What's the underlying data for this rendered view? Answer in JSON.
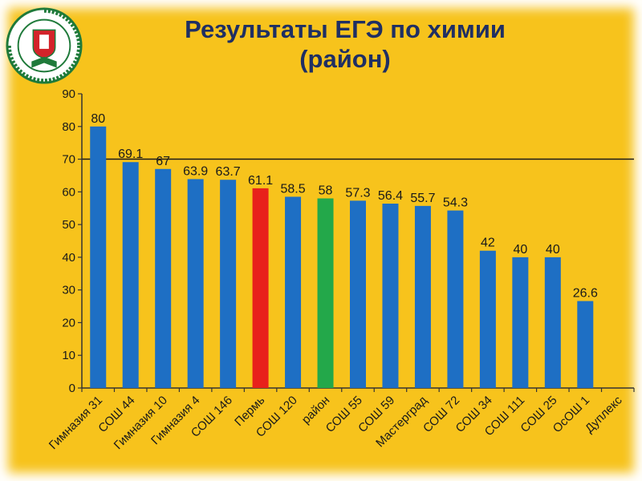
{
  "slide": {
    "title_line1": "Результаты ЕГЭ по химии",
    "title_line2": "(район)",
    "emblem_text": "Администрация города Перми — департамент образования"
  },
  "colors": {
    "background": "#f7c31c",
    "title": "#1f2f63",
    "bar_default": "#1e6fc4",
    "bar_highlight_red": "#e8211b",
    "bar_highlight_green": "#23a84a"
  },
  "chart_data": {
    "type": "bar",
    "title": "Результаты ЕГЭ по химии (район)",
    "xlabel": "",
    "ylabel": "",
    "ylim": [
      0,
      90
    ],
    "yticks": [
      0,
      10,
      20,
      30,
      40,
      50,
      60,
      70,
      80,
      90
    ],
    "grid": "horizontal gridline at 70",
    "legend": "none",
    "categories": [
      "Гимназия 31",
      "СОШ 44",
      "Гимназия 10",
      "Гимназия 4",
      "СОШ 146",
      "Пермь",
      "СОШ 120",
      "район",
      "СОШ 55",
      "СОШ 59",
      "Мастерград",
      "СОШ 72",
      "СОШ 34",
      "СОШ 111",
      "СОШ 25",
      "ОсОШ 1",
      "Дуплекс"
    ],
    "values": [
      80,
      69.1,
      67,
      63.9,
      63.7,
      61.1,
      58.5,
      58,
      57.3,
      56.4,
      55.7,
      54.3,
      42,
      40,
      40,
      26.6,
      null
    ],
    "labels": [
      "80",
      "69.1",
      "67",
      "63.9",
      "63.7",
      "61.1",
      "58.5",
      "58",
      "57.3",
      "56.4",
      "55.7",
      "54.3",
      "42",
      "40",
      "40",
      "26.6",
      ""
    ],
    "bar_colors": [
      "blue",
      "blue",
      "blue",
      "blue",
      "blue",
      "red",
      "blue",
      "green",
      "blue",
      "blue",
      "blue",
      "blue",
      "blue",
      "blue",
      "blue",
      "blue",
      "blue"
    ]
  }
}
